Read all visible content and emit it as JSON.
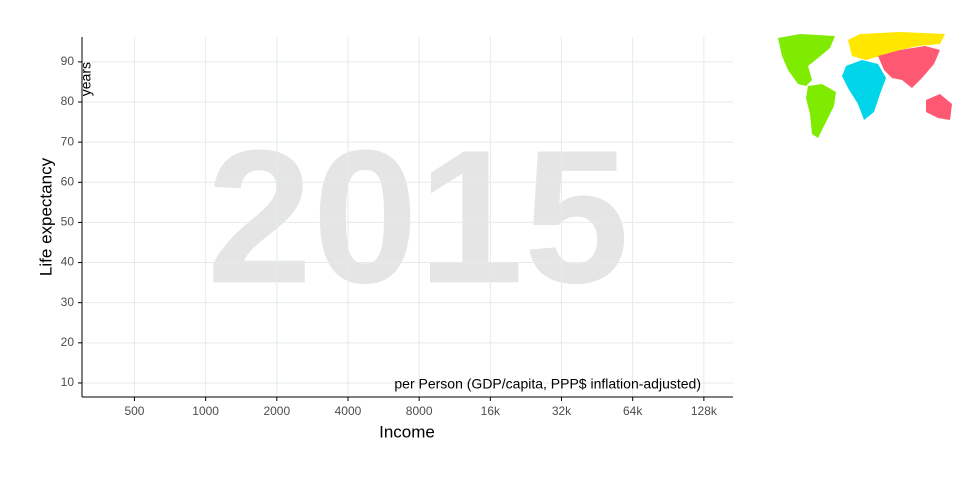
{
  "chart_data": {
    "type": "scatter",
    "watermark": "2015",
    "x_label": "Income",
    "y_label": "Life expectancy",
    "x_annotation": "per Person (GDP/capita, PPP$ inflation-adjusted)",
    "y_annotation": "years",
    "xscale": "log",
    "xlim": [
      300,
      170000
    ],
    "ylim": [
      6.5,
      96.2
    ],
    "xticks": [
      500,
      1000,
      2000,
      4000,
      8000,
      {
        "value": 16000,
        "label": "16k"
      },
      {
        "value": 32000,
        "label": "32k"
      },
      {
        "value": 64000,
        "label": "64k"
      },
      {
        "value": 128000,
        "label": "128k"
      }
    ],
    "yticks": [
      10,
      20,
      30,
      40,
      50,
      60,
      70,
      80,
      90
    ],
    "grid": true,
    "series": []
  }
}
